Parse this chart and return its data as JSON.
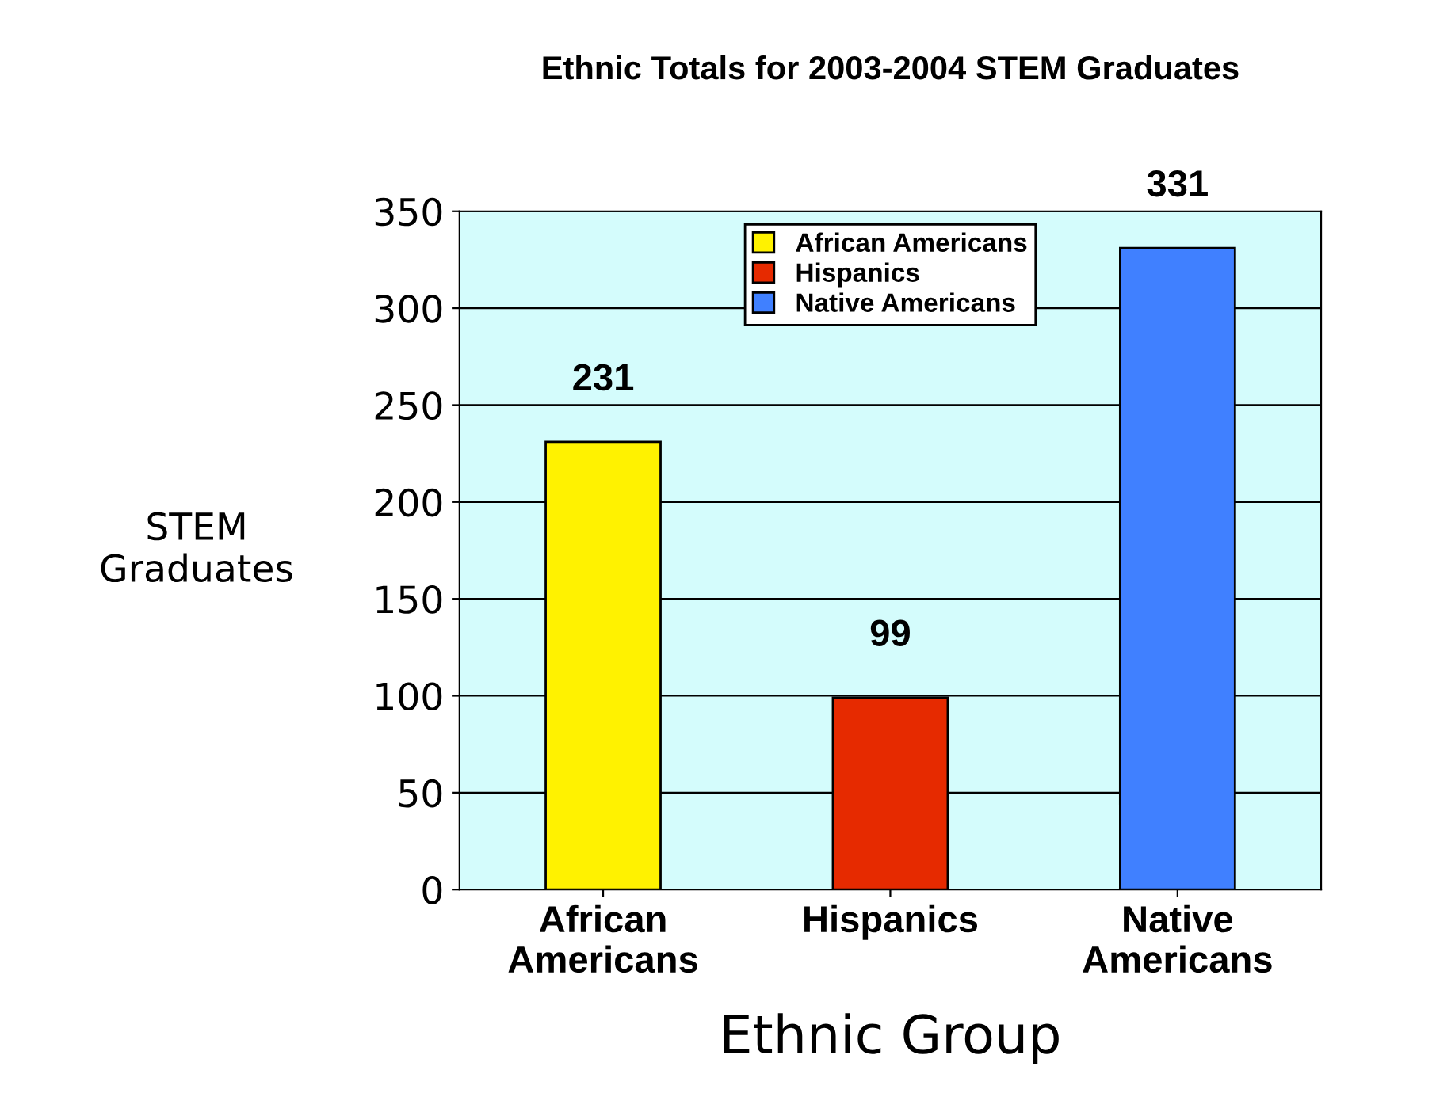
{
  "chart_data": {
    "type": "bar",
    "title": "Ethnic Totals for 2003-2004 STEM Graduates",
    "xlabel": "Ethnic Group",
    "ylabel": "STEM\nGraduates",
    "categories": [
      "African\nAmericans",
      "Hispanics",
      "Native\nAmericans"
    ],
    "series": [
      {
        "name": "African Americans",
        "color": "#fff200",
        "values": [
          231,
          null,
          null
        ]
      },
      {
        "name": "Hispanics",
        "color": "#e62a00",
        "values": [
          null,
          99,
          null
        ]
      },
      {
        "name": "Native Americans",
        "color": "#4080ff",
        "values": [
          null,
          null,
          331
        ]
      }
    ],
    "ylim": [
      0,
      350
    ],
    "yticks": [
      0,
      50,
      100,
      150,
      200,
      250,
      300,
      350
    ],
    "grid": "y",
    "legend": "top",
    "data_labels": true
  }
}
